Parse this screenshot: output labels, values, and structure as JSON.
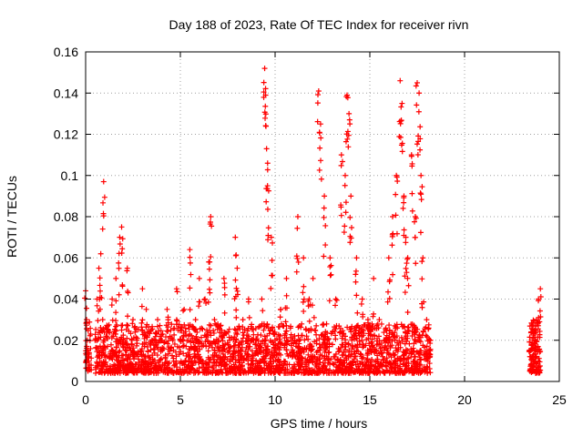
{
  "chart_data": {
    "type": "scatter",
    "title": "Day 188 of 2023, Rate Of TEC Index for receiver rivn",
    "xlabel": "GPS time / hours",
    "ylabel": "ROTI / TECUs",
    "xlim": [
      0,
      25
    ],
    "ylim": [
      0,
      0.16
    ],
    "x_ticks": [
      0,
      5,
      10,
      15,
      20,
      25
    ],
    "x_tick_labels": [
      "0",
      "5",
      "10",
      "15",
      "20",
      "25"
    ],
    "y_ticks": [
      0,
      0.02,
      0.04,
      0.06,
      0.08,
      0.1,
      0.12,
      0.14,
      0.16
    ],
    "y_tick_labels": [
      "0",
      "0.02",
      "0.04",
      "0.06",
      "0.08",
      "0.1",
      "0.12",
      "0.14",
      "0.16"
    ],
    "grid": true,
    "marker": "+",
    "color": "#ff0000",
    "series": [
      {
        "name": "ROTI",
        "x": [
          0.0,
          0.05,
          0.1,
          0.15,
          0.2,
          0.5,
          0.6,
          0.7,
          0.8,
          0.9,
          0.95,
          1.0,
          1.2,
          1.4,
          1.6,
          1.8,
          1.9,
          2.0,
          2.2,
          2.5,
          2.7,
          3.0,
          3.2,
          3.5,
          3.8,
          4.0,
          4.3,
          4.6,
          4.8,
          5.0,
          5.2,
          5.5,
          5.8,
          6.0,
          6.3,
          6.5,
          6.6,
          6.8,
          7.0,
          7.3,
          7.6,
          7.9,
          8.0,
          8.3,
          8.6,
          9.0,
          9.3,
          9.45,
          9.5,
          9.55,
          9.6,
          9.8,
          10.0,
          10.3,
          10.6,
          10.9,
          11.2,
          11.5,
          11.8,
          12.0,
          12.2,
          12.3,
          12.4,
          12.6,
          12.9,
          13.2,
          13.5,
          13.7,
          13.8,
          13.9,
          14.0,
          14.3,
          14.6,
          14.9,
          15.2,
          15.5,
          15.8,
          16.0,
          16.2,
          16.4,
          16.6,
          16.7,
          16.8,
          16.9,
          17.0,
          17.2,
          17.4,
          17.5,
          17.6,
          17.7,
          17.8,
          18.0,
          18.2,
          23.5,
          23.6,
          23.7,
          23.8,
          23.9,
          24.0
        ],
        "y": [
          0.044,
          0.03,
          0.02,
          0.012,
          0.008,
          0.02,
          0.04,
          0.055,
          0.062,
          0.03,
          0.097,
          0.02,
          0.025,
          0.04,
          0.05,
          0.07,
          0.075,
          0.02,
          0.055,
          0.03,
          0.02,
          0.045,
          0.035,
          0.02,
          0.03,
          0.02,
          0.035,
          0.02,
          0.045,
          0.02,
          0.035,
          0.064,
          0.03,
          0.05,
          0.04,
          0.058,
          0.08,
          0.03,
          0.02,
          0.05,
          0.02,
          0.07,
          0.055,
          0.03,
          0.04,
          0.02,
          0.04,
          0.152,
          0.139,
          0.113,
          0.095,
          0.07,
          0.02,
          0.035,
          0.05,
          0.02,
          0.08,
          0.06,
          0.04,
          0.05,
          0.02,
          0.141,
          0.125,
          0.09,
          0.06,
          0.04,
          0.11,
          0.1,
          0.139,
          0.13,
          0.09,
          0.06,
          0.04,
          0.03,
          0.05,
          0.03,
          0.02,
          0.06,
          0.08,
          0.1,
          0.146,
          0.135,
          0.09,
          0.07,
          0.06,
          0.11,
          0.08,
          0.145,
          0.14,
          0.1,
          0.06,
          0.03,
          0.02,
          0.015,
          0.02,
          0.025,
          0.03,
          0.04,
          0.045
        ]
      }
    ],
    "bands": [
      {
        "x_from": 0.0,
        "x_to": 0.3,
        "y_low": 0.005,
        "y_high": 0.03,
        "density": 40
      },
      {
        "x_from": 0.5,
        "x_to": 18.2,
        "y_low": 0.004,
        "y_high": 0.028,
        "density": 2200
      },
      {
        "x_from": 23.4,
        "x_to": 24.0,
        "y_low": 0.004,
        "y_high": 0.03,
        "density": 120
      }
    ]
  }
}
